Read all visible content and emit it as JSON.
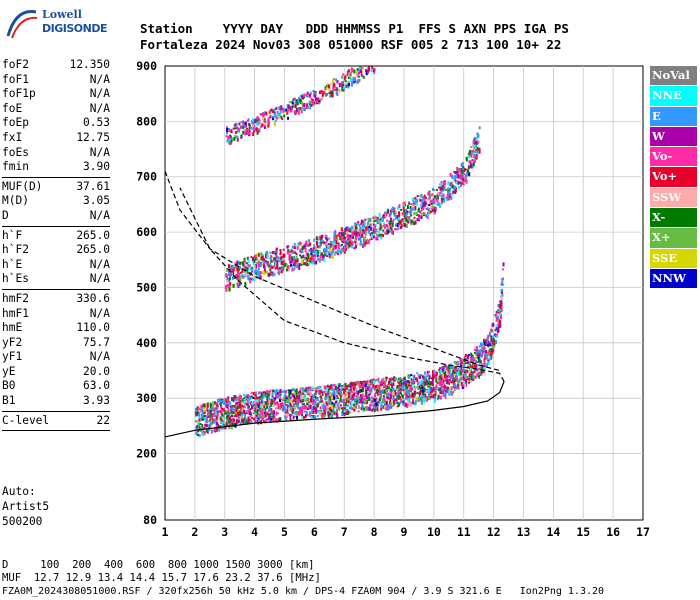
{
  "logo": {
    "line1": "Lowell",
    "line2": "DIGISONDE"
  },
  "header": {
    "line1": "Station    YYYY DAY   DDD HHMMSS P1  FFS S AXN PPS IGA PS",
    "line2": "Fortaleza 2024 Nov03 308 051000 RSF 005 2 713 100 10+ 22"
  },
  "params": [
    [
      {
        "k": "foF2",
        "v": "12.350"
      },
      {
        "k": "foF1",
        "v": "N/A"
      },
      {
        "k": "foF1p",
        "v": "N/A"
      },
      {
        "k": "foE",
        "v": "N/A"
      },
      {
        "k": "foEp",
        "v": "0.53"
      },
      {
        "k": "fxI",
        "v": "12.75"
      },
      {
        "k": "foEs",
        "v": "N/A"
      },
      {
        "k": "fmin",
        "v": "3.90"
      }
    ],
    [
      {
        "k": "MUF(D)",
        "v": "37.61"
      },
      {
        "k": "M(D)",
        "v": "3.05"
      },
      {
        "k": "D",
        "v": "N/A"
      }
    ],
    [
      {
        "k": "h`F",
        "v": "265.0"
      },
      {
        "k": "h`F2",
        "v": "265.0"
      },
      {
        "k": "h`E",
        "v": "N/A"
      },
      {
        "k": "h`Es",
        "v": "N/A"
      }
    ],
    [
      {
        "k": "hmF2",
        "v": "330.6"
      },
      {
        "k": "hmF1",
        "v": "N/A"
      },
      {
        "k": "hmE",
        "v": "110.0"
      },
      {
        "k": "yF2",
        "v": "75.7"
      },
      {
        "k": "yF1",
        "v": "N/A"
      },
      {
        "k": "yE",
        "v": "20.0"
      },
      {
        "k": "B0",
        "v": "63.0"
      },
      {
        "k": "B1",
        "v": "3.93"
      }
    ],
    [
      {
        "k": "C-level",
        "v": "22"
      }
    ]
  ],
  "auto": {
    "l1": "Auto:",
    "l2": "Artist5",
    "l3": "500200"
  },
  "legend": [
    {
      "label": "NoVal",
      "color": "#808080"
    },
    {
      "label": "NNE",
      "color": "#00ffff"
    },
    {
      "label": "E",
      "color": "#3399ff"
    },
    {
      "label": "W",
      "color": "#aa00aa"
    },
    {
      "label": "Vo-",
      "color": "#ff2aa6"
    },
    {
      "label": "Vo+",
      "color": "#e8002a"
    },
    {
      "label": "SSW",
      "color": "#ffaaaa"
    },
    {
      "label": "X-",
      "color": "#007a00"
    },
    {
      "label": "X+",
      "color": "#66bb44"
    },
    {
      "label": "SSE",
      "color": "#d6d600"
    },
    {
      "label": "NNW",
      "color": "#0000cc"
    }
  ],
  "footer": {
    "l1": "D     100  200  400  600  800 1000 1500 3000 [km]",
    "l2": "MUF  12.7 12.9 13.4 14.4 15.7 17.6 23.2 37.6 [MHz]",
    "l3": "FZA0M_2024308051000.RSF / 320fx256h 50 kHz 5.0 km / DPS-4 FZA0M 904 / 3.9 S 321.6 E   Ion2Png 1.3.20"
  },
  "chart_data": {
    "type": "scatter",
    "title": "",
    "xlabel": "",
    "ylabel": "",
    "xlim": [
      1,
      17
    ],
    "ylim": [
      80,
      900
    ],
    "xticks": [
      1,
      2,
      3,
      4,
      5,
      6,
      7,
      8,
      9,
      10,
      11,
      12,
      13,
      14,
      15,
      16,
      17
    ],
    "yticks": [
      80,
      200,
      300,
      400,
      500,
      600,
      700,
      800,
      900
    ],
    "grid": true,
    "traces": [
      {
        "name": "F2 trace",
        "x": [
          2.0,
          3.0,
          4.0,
          5.0,
          6.0,
          7.0,
          8.0,
          9.0,
          10.0,
          10.5,
          11.0,
          11.5,
          11.8,
          12.0,
          12.2,
          12.3
        ],
        "y": [
          248,
          265,
          275,
          280,
          285,
          290,
          298,
          305,
          315,
          325,
          340,
          360,
          380,
          410,
          450,
          520
        ]
      },
      {
        "name": "2F2 trace",
        "x": [
          3.0,
          4.0,
          5.0,
          6.0,
          7.0,
          8.0,
          9.0,
          10.0,
          11.0,
          11.5
        ],
        "y": [
          510,
          530,
          545,
          560,
          580,
          600,
          625,
          650,
          700,
          760
        ]
      },
      {
        "name": "3F2 trace",
        "x": [
          3.0,
          4.0,
          5.0,
          6.0,
          7.0,
          8.0
        ],
        "y": [
          770,
          790,
          815,
          840,
          870,
          900
        ]
      },
      {
        "name": "profile",
        "x": [
          1.0,
          2.0,
          4.0,
          6.0,
          8.0,
          10.0,
          11.0,
          11.8,
          12.2,
          12.35,
          12.2,
          11.5,
          10.5,
          9.0,
          7.0,
          5.0,
          3.5,
          2.5,
          1.5
        ],
        "y": [
          230,
          242,
          255,
          262,
          268,
          278,
          285,
          295,
          310,
          330,
          345,
          352,
          360,
          375,
          400,
          440,
          510,
          570,
          680
        ]
      },
      {
        "name": "MUF curve",
        "x": [
          1.0,
          1.5,
          2.5,
          4.0,
          6.0,
          8.0,
          10.0,
          11.5,
          12.2
        ],
        "y": [
          710,
          640,
          570,
          520,
          475,
          430,
          390,
          360,
          350
        ]
      }
    ]
  }
}
